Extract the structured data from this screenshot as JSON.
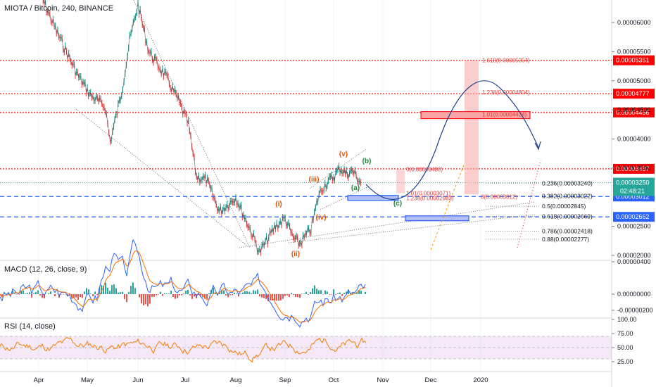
{
  "header": {
    "symbol_title": "MIOTA / Bitcoin, 240, BINANCE",
    "macd_title": "MACD (12, 26, close, 9)",
    "rsi_title": "RSI (14, close)"
  },
  "chart_data": [
    {
      "type": "line",
      "pane": "price",
      "x_ticks": [
        "Apr",
        "May",
        "Jun",
        "Jul",
        "Aug",
        "Sep",
        "Oct",
        "Nov",
        "Dec",
        "2020"
      ],
      "ylim": [
        1.93e-05,
        6.3e-05
      ],
      "y_ticks": [
        "0.00006000",
        "0.00005500",
        "0.00005000",
        "0.00004500",
        "0.00004000",
        "0.00003500",
        "0.00002500",
        "0.00002000"
      ],
      "price_path": [
        [
          "Apr",
          6.55e-05
        ],
        [
          "Apr 12",
          5.85e-05
        ],
        [
          "Apr 25",
          5.1e-05
        ],
        [
          "May 3",
          4.75e-05
        ],
        [
          "May 12",
          4.55e-05
        ],
        [
          "May 15",
          3.95e-05
        ],
        [
          "May 22",
          4.8e-05
        ],
        [
          "May 27",
          5.7e-05
        ],
        [
          "Jun 1",
          6.3e-05
        ],
        [
          "Jun 8",
          5.5e-05
        ],
        [
          "Jun 18",
          5.1e-05
        ],
        [
          "Jun 26",
          4.7e-05
        ],
        [
          "Jul 3",
          4.25e-05
        ],
        [
          "Jul 8",
          3.35e-05
        ],
        [
          "Jul 14",
          3.3e-05
        ],
        [
          "Jul 22",
          2.75e-05
        ],
        [
          "Aug 1",
          3e-05
        ],
        [
          "Aug 10",
          2.45e-05
        ],
        [
          "Aug 16",
          2.05e-05
        ],
        [
          "Aug 26",
          2.5e-05
        ],
        [
          "Sep 1",
          2.63e-05
        ],
        [
          "Sep 6",
          2.3e-05
        ],
        [
          "Sep 10",
          2.2e-05
        ],
        [
          "Sep 17",
          2.45e-05
        ],
        [
          "Sep 22",
          3.05e-05
        ],
        [
          "Sep 25",
          3.2e-05
        ],
        [
          "Oct 1",
          3.35e-05
        ],
        [
          "Oct 5",
          3.5e-05
        ],
        [
          "Oct 9",
          3.4e-05
        ],
        [
          "Oct 13",
          3.45e-05
        ],
        [
          "Oct 18",
          3.25e-05
        ]
      ],
      "series": [
        {
          "name": "MIOTA / Bitcoin"
        }
      ],
      "horizontal_levels": [
        {
          "label": "0.00005351",
          "value": 5.351e-05,
          "color": "#ff0000",
          "style": "dotted"
        },
        {
          "label": "0.00004777",
          "value": 4.777e-05,
          "color": "#ff0000",
          "style": "dotted"
        },
        {
          "label": "0.00004456",
          "value": 4.456e-05,
          "color": "#ff0000",
          "style": "dotted"
        },
        {
          "label": "0.00003487",
          "value": 3.487e-05,
          "color": "#ff0000",
          "style": "dotted"
        },
        {
          "label": "0.00003012",
          "value": 3.012e-05,
          "color": "#2962ff",
          "style": "dashed"
        },
        {
          "label": "0.00002662",
          "value": 2.662e-05,
          "color": "#2962ff",
          "style": "dashed"
        }
      ],
      "current_price": {
        "label": "0.00003250",
        "value": 3.25e-05,
        "countdown": "02:48:21",
        "color": "#26a69a"
      },
      "fib_labels_right": [
        {
          "text": "0.236(0.00003240)",
          "value": 3.24e-05
        },
        {
          "text": "0.382(0.00003022)",
          "value": 3.022e-05
        },
        {
          "text": "0.5(0.00002845)",
          "value": 2.845e-05
        },
        {
          "text": "0.618(0.00002669)",
          "value": 2.669e-05
        },
        {
          "text": "0.786(0.00002418)",
          "value": 2.418e-05
        },
        {
          "text": "0.88(0.00002277)",
          "value": 2.277e-05
        }
      ],
      "fib_labels_red": [
        {
          "text": "1.618(0.00005354)",
          "value": 5.354e-05
        },
        {
          "text": "1.238(0.00004804)",
          "value": 4.804e-05
        },
        {
          "text": "1.01(0.00004424)",
          "value": 4.424e-05
        },
        {
          "text": "0(0.00003480)",
          "value": 3.48e-05
        },
        {
          "text": "1.01(0.00003071)",
          "value": 3.071e-05
        },
        {
          "text": "1.238(0.00002983)",
          "value": 2.983e-05
        },
        {
          "text": "0(0.00003012)",
          "value": 3.012e-05
        }
      ],
      "wave_labels": [
        {
          "text": "(i)",
          "color": "#e65100"
        },
        {
          "text": "(ii)",
          "color": "#e65100"
        },
        {
          "text": "(iii)",
          "color": "#e65100"
        },
        {
          "text": "(iv)",
          "color": "#e65100"
        },
        {
          "text": "(v)",
          "color": "#e65100"
        },
        {
          "text": "(a)",
          "color": "#1b8a3a"
        },
        {
          "text": "(b)",
          "color": "#1b8a3a"
        },
        {
          "text": "(c)",
          "color": "#1b8a3a"
        }
      ],
      "colors": {
        "projection_curve": "#1a3d8f",
        "zone_fill": "#f8a5a5",
        "zone_border": "#ff0000",
        "box_blue": "#2962ff"
      }
    },
    {
      "type": "line",
      "pane": "macd",
      "y_ticks": [
        "0.00000400",
        "0.00000000",
        "-0.00000200"
      ],
      "series": [
        {
          "name": "MACD",
          "color": "#2962ff"
        },
        {
          "name": "Signal",
          "color": "#ff6d00"
        },
        {
          "name": "Histogram",
          "color": "#26a69a"
        }
      ]
    },
    {
      "type": "line",
      "pane": "rsi",
      "ylim": [
        15,
        100
      ],
      "y_ticks": [
        "100.00",
        "75.00",
        "50.00",
        "25.00"
      ],
      "band": [
        30,
        70
      ],
      "series": [
        {
          "name": "RSI",
          "color": "#f57c00"
        }
      ]
    }
  ]
}
